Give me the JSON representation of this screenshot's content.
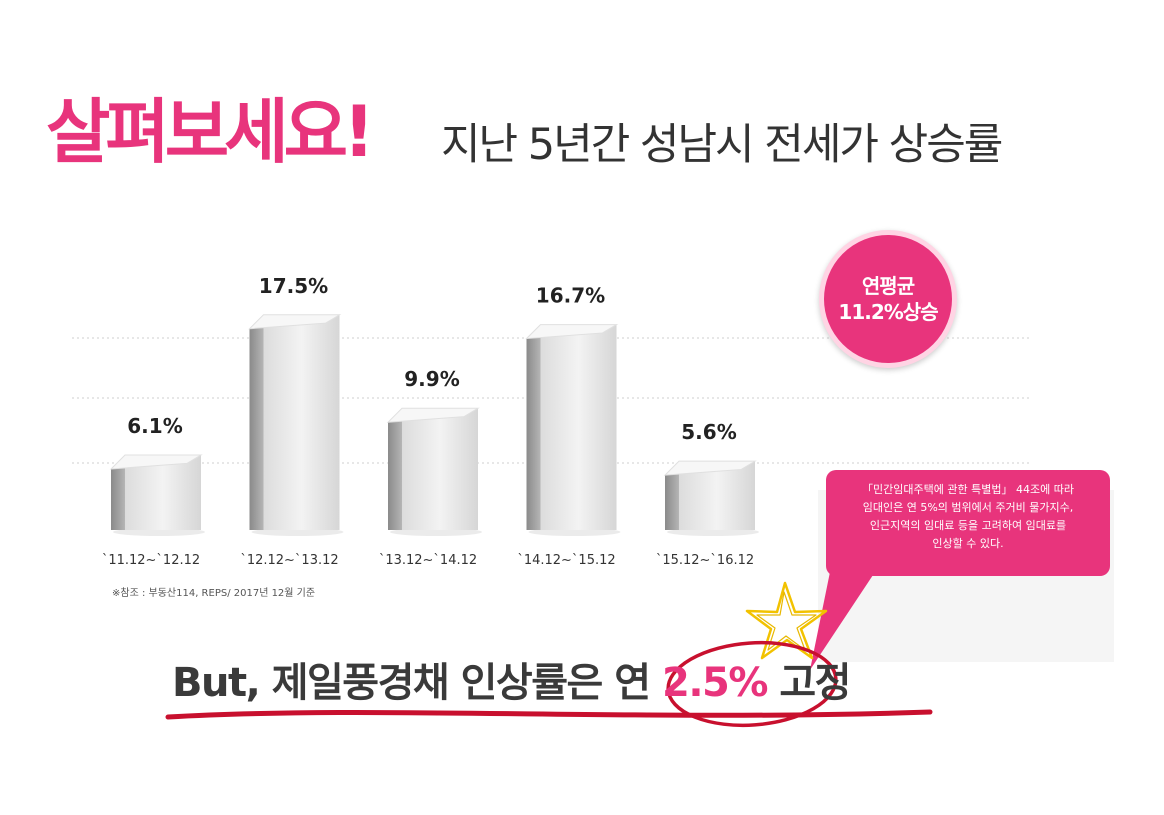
{
  "header": {
    "title_main": "살펴보세요!",
    "title_sub": "지난 5년간 성남시 전세가 상승률"
  },
  "chart_data": {
    "type": "bar",
    "categories": [
      "`11.12~`12.12",
      "`12.12~`13.12",
      "`13.12~`14.12",
      "`14.12~`15.12",
      "`15.12~`16.12"
    ],
    "values": [
      6.1,
      17.5,
      9.9,
      16.7,
      5.6
    ],
    "value_labels": [
      "6.1%",
      "17.5%",
      "9.9%",
      "16.7%",
      "5.6%"
    ],
    "unit": "%",
    "title": "",
    "xlabel": "",
    "ylabel": "",
    "ylim": [
      0,
      20
    ],
    "grid": true,
    "bar_color": "#e6e6e6"
  },
  "source_note": "※참조 : 부동산114, REPS/ 2017년 12월 기준",
  "badge": {
    "line1": "연평균",
    "line2": "11.2%상승"
  },
  "callout": {
    "line1": "「민간임대주택에 관한 특별법」 44조에 따라",
    "line2": "임대인은 연 5%의 범위에서 주거비 물가지수,",
    "line3": "인근지역의 임대료 등을 고려하여 임대료를",
    "line4": "인상할 수 있다."
  },
  "bottom": {
    "part1": "But, 제일풍경채 인상률은 연 ",
    "highlight": "2.5%",
    "part2": " 고정"
  },
  "colors": {
    "accent": "#e8347c",
    "text": "#333333",
    "underline": "#c8102e",
    "star": "#f2c200"
  }
}
